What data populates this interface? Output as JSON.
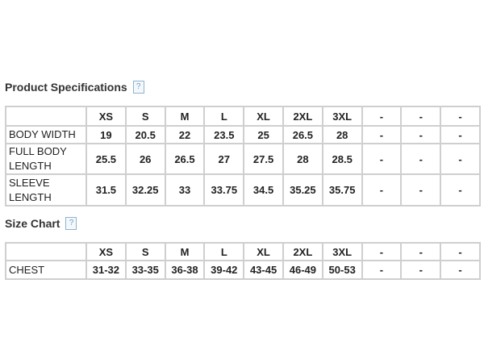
{
  "sections": [
    {
      "title": "Product Specifications",
      "help": "?",
      "table": {
        "columns": [
          "XS",
          "S",
          "M",
          "L",
          "XL",
          "2XL",
          "3XL",
          "-",
          "-",
          "-"
        ],
        "rows": [
          {
            "label": "BODY WIDTH",
            "cells": [
              19,
              20.5,
              22,
              23.5,
              25,
              26.5,
              28,
              "-",
              "-",
              "-"
            ]
          },
          {
            "label": "FULL BODY LENGTH",
            "cells": [
              25.5,
              26,
              26.5,
              27,
              27.5,
              28,
              28.5,
              "-",
              "-",
              "-"
            ]
          },
          {
            "label": "SLEEVE LENGTH",
            "cells": [
              31.5,
              32.25,
              33,
              33.75,
              34.5,
              35.25,
              35.75,
              "-",
              "-",
              "-"
            ]
          }
        ]
      }
    },
    {
      "title": "Size Chart",
      "help": "?",
      "table": {
        "columns": [
          "XS",
          "S",
          "M",
          "L",
          "XL",
          "2XL",
          "3XL",
          "-",
          "-",
          "-"
        ],
        "rows": [
          {
            "label": "CHEST",
            "cells": [
              "31-32",
              "33-35",
              "36-38",
              "39-42",
              "43-45",
              "46-49",
              "50-53",
              "-",
              "-",
              "-"
            ]
          }
        ]
      }
    }
  ]
}
